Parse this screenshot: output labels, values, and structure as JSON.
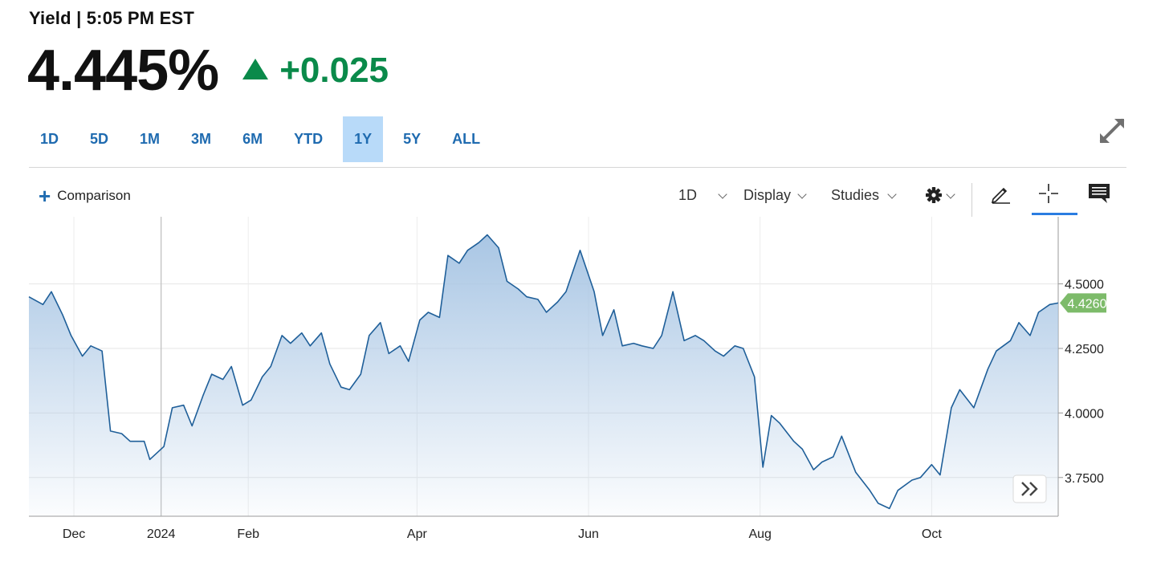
{
  "header": {
    "label": "Yield | 5:05 PM EST",
    "price": "4.445%",
    "change": "+0.025",
    "change_color": "#0a8a4a"
  },
  "range_tabs": [
    "1D",
    "5D",
    "1M",
    "3M",
    "6M",
    "YTD",
    "1Y",
    "5Y",
    "ALL"
  ],
  "active_range": "1Y",
  "toolbar": {
    "comparison_label": "Comparison",
    "interval_label": "1D",
    "display_label": "Display",
    "studies_label": "Studies",
    "icons": [
      "gear-icon",
      "pencil-icon",
      "crosshair-icon",
      "comment-icon",
      "expand-icon",
      "double-chevron-icon"
    ]
  },
  "chart_data": {
    "type": "area",
    "y_ticks": [
      "4.5000",
      "4.2500",
      "4.0000",
      "3.7500"
    ],
    "y_tick_values": [
      4.5,
      4.25,
      4.0,
      3.75
    ],
    "ylim": [
      3.6,
      4.76
    ],
    "x_ticks": [
      "Dec",
      "2024",
      "Feb",
      "Apr",
      "Jun",
      "Aug",
      "Oct"
    ],
    "last_value_label": "4.4260",
    "last_value": 4.426,
    "line_color": "#1f5f99",
    "fill_color": "#a9c6e4",
    "x": [
      "2023-11-15",
      "2023-11-20",
      "2023-11-23",
      "2023-11-27",
      "2023-11-30",
      "2023-12-04",
      "2023-12-07",
      "2023-12-11",
      "2023-12-14",
      "2023-12-18",
      "2023-12-21",
      "2023-12-26",
      "2023-12-28",
      "2024-01-02",
      "2024-01-05",
      "2024-01-09",
      "2024-01-12",
      "2024-01-16",
      "2024-01-19",
      "2024-01-23",
      "2024-01-26",
      "2024-01-30",
      "2024-02-02",
      "2024-02-06",
      "2024-02-09",
      "2024-02-13",
      "2024-02-16",
      "2024-02-20",
      "2024-02-23",
      "2024-02-27",
      "2024-03-01",
      "2024-03-05",
      "2024-03-08",
      "2024-03-12",
      "2024-03-15",
      "2024-03-19",
      "2024-03-22",
      "2024-03-26",
      "2024-03-29",
      "2024-04-02",
      "2024-04-05",
      "2024-04-09",
      "2024-04-12",
      "2024-04-16",
      "2024-04-19",
      "2024-04-23",
      "2024-04-26",
      "2024-04-30",
      "2024-05-03",
      "2024-05-07",
      "2024-05-10",
      "2024-05-14",
      "2024-05-17",
      "2024-05-21",
      "2024-05-24",
      "2024-05-29",
      "2024-06-03",
      "2024-06-06",
      "2024-06-10",
      "2024-06-13",
      "2024-06-17",
      "2024-06-20",
      "2024-06-24",
      "2024-06-27",
      "2024-07-01",
      "2024-07-05",
      "2024-07-09",
      "2024-07-12",
      "2024-07-16",
      "2024-07-19",
      "2024-07-23",
      "2024-07-26",
      "2024-07-30",
      "2024-08-02",
      "2024-08-05",
      "2024-08-08",
      "2024-08-13",
      "2024-08-16",
      "2024-08-20",
      "2024-08-23",
      "2024-08-27",
      "2024-08-30",
      "2024-09-04",
      "2024-09-09",
      "2024-09-12",
      "2024-09-16",
      "2024-09-19",
      "2024-09-24",
      "2024-09-27",
      "2024-10-01",
      "2024-10-04",
      "2024-10-08",
      "2024-10-11",
      "2024-10-16",
      "2024-10-21",
      "2024-10-24",
      "2024-10-29",
      "2024-11-01",
      "2024-11-05",
      "2024-11-08",
      "2024-11-12",
      "2024-11-15"
    ],
    "values": [
      4.45,
      4.42,
      4.47,
      4.38,
      4.3,
      4.22,
      4.26,
      4.24,
      3.93,
      3.92,
      3.89,
      3.89,
      3.82,
      3.87,
      4.02,
      4.03,
      3.95,
      4.07,
      4.15,
      4.13,
      4.18,
      4.03,
      4.05,
      4.14,
      4.18,
      4.3,
      4.27,
      4.31,
      4.26,
      4.31,
      4.19,
      4.1,
      4.09,
      4.15,
      4.3,
      4.35,
      4.23,
      4.26,
      4.2,
      4.36,
      4.39,
      4.37,
      4.61,
      4.58,
      4.63,
      4.66,
      4.69,
      4.64,
      4.51,
      4.48,
      4.45,
      4.44,
      4.39,
      4.43,
      4.47,
      4.63,
      4.47,
      4.3,
      4.4,
      4.26,
      4.27,
      4.26,
      4.25,
      4.3,
      4.47,
      4.28,
      4.3,
      4.28,
      4.24,
      4.22,
      4.26,
      4.25,
      4.14,
      3.79,
      3.99,
      3.96,
      3.89,
      3.86,
      3.78,
      3.81,
      3.83,
      3.91,
      3.77,
      3.7,
      3.65,
      3.63,
      3.7,
      3.74,
      3.75,
      3.8,
      3.76,
      4.02,
      4.09,
      4.02,
      4.17,
      4.24,
      4.28,
      4.35,
      4.3,
      4.39,
      4.42,
      4.426
    ]
  }
}
